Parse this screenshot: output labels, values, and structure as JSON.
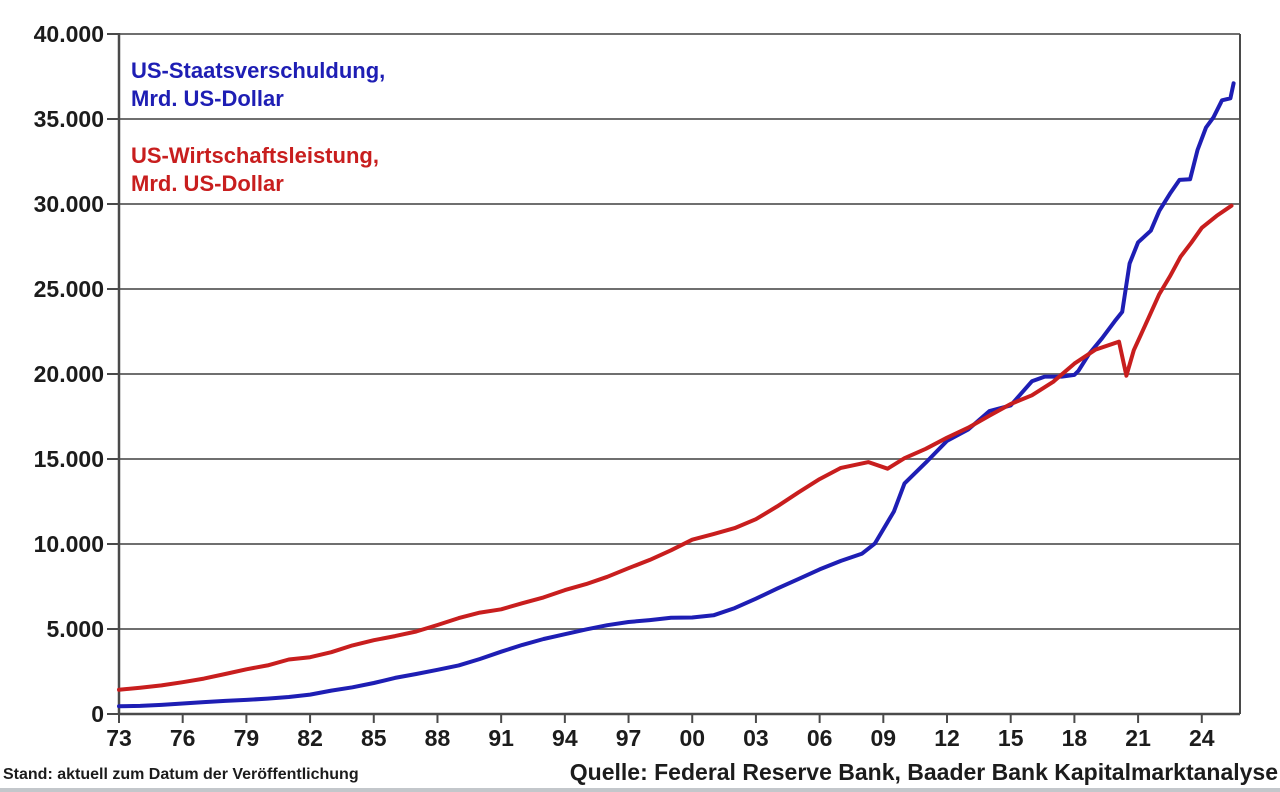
{
  "legend": {
    "debt_line1": "US-Staatsverschuldung,",
    "debt_line2": "Mrd. US-Dollar",
    "gdp_line1": "US-Wirtschaftsleistung,",
    "gdp_line2": "Mrd. US-Dollar"
  },
  "footer": {
    "status": "Stand: aktuell zum Datum der Veröffentlichung",
    "source": "Quelle: Federal Reserve Bank, Baader Bank Kapitalmarktanalyse"
  },
  "colors": {
    "debt": "#1e1eb4",
    "gdp": "#c81e1e",
    "grid": "#6f6f6f",
    "axis": "#4a4a4a",
    "text": "#1c1c1c"
  },
  "chart_data": {
    "type": "line",
    "title": "",
    "xlabel": "",
    "ylabel": "Mrd. US-Dollar",
    "xlim": [
      1973,
      2025.8
    ],
    "ylim": [
      0,
      40000
    ],
    "grid": true,
    "legend_position": "top-left-inside",
    "ytick_values": [
      0,
      5000,
      10000,
      15000,
      20000,
      25000,
      30000,
      35000,
      40000
    ],
    "ytick_labels": [
      "0",
      "5.000",
      "10.000",
      "15.000",
      "20.000",
      "25.000",
      "30.000",
      "35.000",
      "40.000"
    ],
    "xtick_values": [
      1973,
      1976,
      1979,
      1982,
      1985,
      1988,
      1991,
      1994,
      1997,
      2000,
      2003,
      2006,
      2009,
      2012,
      2015,
      2018,
      2021,
      2024
    ],
    "xtick_labels": [
      "73",
      "76",
      "79",
      "82",
      "85",
      "88",
      "91",
      "94",
      "97",
      "00",
      "03",
      "06",
      "09",
      "12",
      "15",
      "18",
      "21",
      "24"
    ],
    "series": [
      {
        "name": "US-Staatsverschuldung, Mrd. US-Dollar",
        "color_key": "debt",
        "points": [
          [
            1973,
            458
          ],
          [
            1974,
            475
          ],
          [
            1975,
            533
          ],
          [
            1976,
            620
          ],
          [
            1977,
            699
          ],
          [
            1978,
            772
          ],
          [
            1979,
            827
          ],
          [
            1980,
            908
          ],
          [
            1981,
            998
          ],
          [
            1982,
            1142
          ],
          [
            1983,
            1377
          ],
          [
            1984,
            1572
          ],
          [
            1985,
            1823
          ],
          [
            1986,
            2125
          ],
          [
            1987,
            2350
          ],
          [
            1988,
            2602
          ],
          [
            1989,
            2857
          ],
          [
            1990,
            3233
          ],
          [
            1991,
            3665
          ],
          [
            1992,
            4065
          ],
          [
            1993,
            4411
          ],
          [
            1994,
            4693
          ],
          [
            1995,
            4974
          ],
          [
            1996,
            5225
          ],
          [
            1997,
            5413
          ],
          [
            1998,
            5526
          ],
          [
            1999,
            5656
          ],
          [
            2000,
            5674
          ],
          [
            2001,
            5807
          ],
          [
            2002,
            6228
          ],
          [
            2003,
            6783
          ],
          [
            2004,
            7379
          ],
          [
            2005,
            7933
          ],
          [
            2006,
            8507
          ],
          [
            2007,
            9008
          ],
          [
            2008,
            9438
          ],
          [
            2008.6,
            10025
          ],
          [
            2009.5,
            11910
          ],
          [
            2010,
            13562
          ],
          [
            2011,
            14790
          ],
          [
            2012,
            16066
          ],
          [
            2013,
            16738
          ],
          [
            2014,
            17824
          ],
          [
            2015,
            18151
          ],
          [
            2016,
            19573
          ],
          [
            2016.6,
            19850
          ],
          [
            2017.4,
            19850
          ],
          [
            2018,
            19950
          ],
          [
            2018.2,
            20200
          ],
          [
            2018.7,
            21200
          ],
          [
            2019.3,
            22100
          ],
          [
            2019.9,
            23100
          ],
          [
            2020.25,
            23650
          ],
          [
            2020.6,
            26500
          ],
          [
            2021,
            27750
          ],
          [
            2021.6,
            28430
          ],
          [
            2022,
            29600
          ],
          [
            2022.5,
            30600
          ],
          [
            2022.95,
            31420
          ],
          [
            2023.45,
            31460
          ],
          [
            2023.8,
            33170
          ],
          [
            2024.2,
            34500
          ],
          [
            2024.55,
            35100
          ],
          [
            2024.95,
            36100
          ],
          [
            2025.35,
            36220
          ],
          [
            2025.5,
            37100
          ]
        ]
      },
      {
        "name": "US-Wirtschaftsleistung, Mrd. US-Dollar",
        "color_key": "gdp",
        "points": [
          [
            1973,
            1425
          ],
          [
            1974,
            1545
          ],
          [
            1975,
            1685
          ],
          [
            1976,
            1873
          ],
          [
            1977,
            2082
          ],
          [
            1978,
            2352
          ],
          [
            1979,
            2627
          ],
          [
            1980,
            2857
          ],
          [
            1981,
            3207
          ],
          [
            1982,
            3344
          ],
          [
            1983,
            3634
          ],
          [
            1984,
            4038
          ],
          [
            1985,
            4339
          ],
          [
            1986,
            4580
          ],
          [
            1987,
            4855
          ],
          [
            1988,
            5236
          ],
          [
            1989,
            5642
          ],
          [
            1990,
            5963
          ],
          [
            1991,
            6158
          ],
          [
            1992,
            6520
          ],
          [
            1993,
            6859
          ],
          [
            1994,
            7287
          ],
          [
            1995,
            7640
          ],
          [
            1996,
            8073
          ],
          [
            1997,
            8578
          ],
          [
            1998,
            9063
          ],
          [
            1999,
            9631
          ],
          [
            2000,
            10251
          ],
          [
            2001,
            10582
          ],
          [
            2002,
            10936
          ],
          [
            2003,
            11458
          ],
          [
            2004,
            12214
          ],
          [
            2005,
            13037
          ],
          [
            2006,
            13815
          ],
          [
            2007,
            14474
          ],
          [
            2008.3,
            14820
          ],
          [
            2009.2,
            14430
          ],
          [
            2010,
            15049
          ],
          [
            2011,
            15600
          ],
          [
            2012,
            16254
          ],
          [
            2013,
            16843
          ],
          [
            2014,
            17551
          ],
          [
            2015,
            18238
          ],
          [
            2016,
            18745
          ],
          [
            2017,
            19543
          ],
          [
            2018,
            20612
          ],
          [
            2019,
            21433
          ],
          [
            2020.1,
            21900
          ],
          [
            2020.45,
            19900
          ],
          [
            2020.8,
            21400
          ],
          [
            2021.5,
            23315
          ],
          [
            2022,
            24700
          ],
          [
            2022.5,
            25744
          ],
          [
            2023,
            26900
          ],
          [
            2023.5,
            27720
          ],
          [
            2024,
            28600
          ],
          [
            2024.7,
            29300
          ],
          [
            2025.4,
            29900
          ]
        ]
      }
    ]
  }
}
